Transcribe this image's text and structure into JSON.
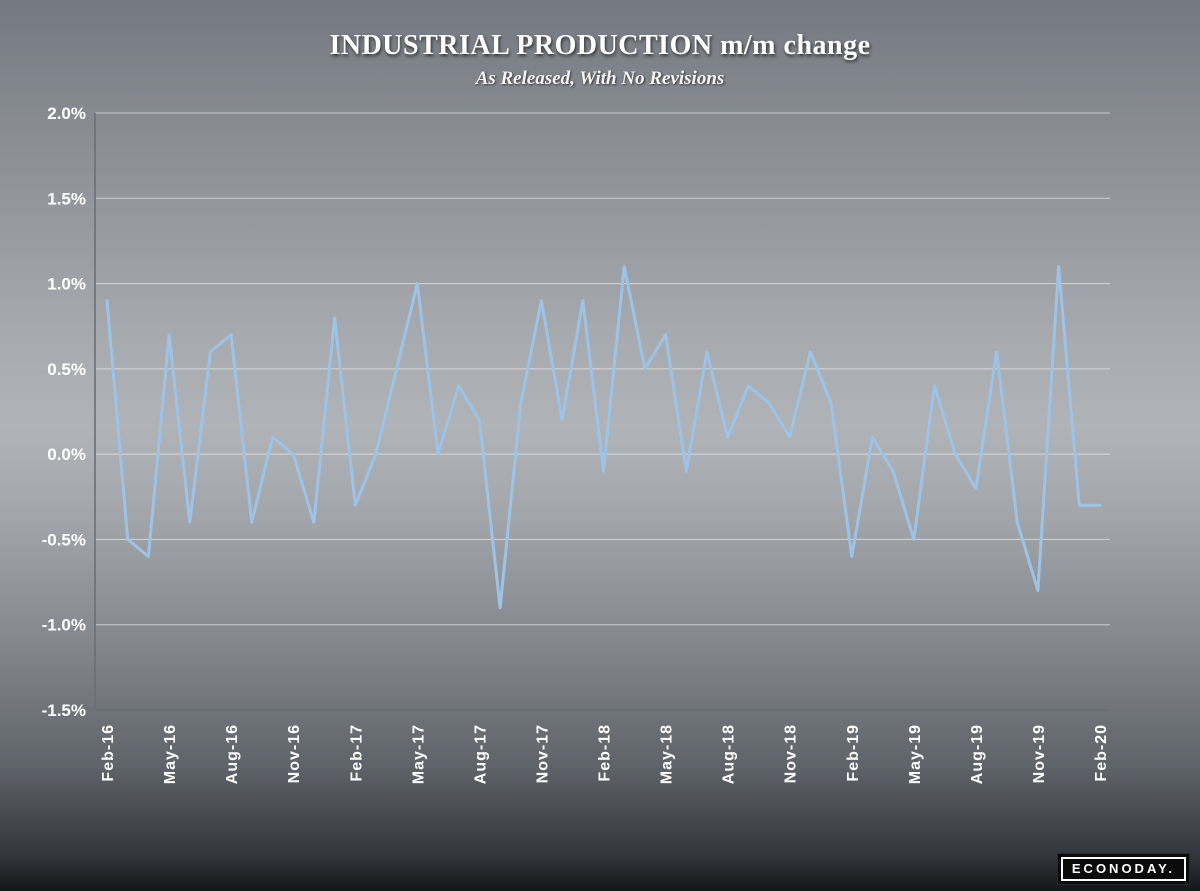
{
  "chart_data": {
    "type": "line",
    "title": "INDUSTRIAL PRODUCTION m/m change",
    "subtitle": "As Released, With No Revisions",
    "frequency": "monthly",
    "x_start": "Feb-16",
    "x_end": "Feb-20",
    "categories": [
      "Feb-16",
      "May-16",
      "Aug-16",
      "Nov-16",
      "Feb-17",
      "May-17",
      "Aug-17",
      "Nov-17",
      "Feb-18",
      "May-18",
      "Aug-18",
      "Nov-18",
      "Feb-19",
      "May-19",
      "Aug-19",
      "Nov-19",
      "Feb-20"
    ],
    "xtick_every": 3,
    "values": [
      0.9,
      -0.5,
      -0.6,
      0.7,
      -0.4,
      0.6,
      0.7,
      -0.4,
      0.1,
      0.0,
      -0.4,
      0.8,
      -0.3,
      0.0,
      0.5,
      1.0,
      0.0,
      0.4,
      0.2,
      -0.9,
      0.3,
      0.9,
      0.2,
      0.9,
      -0.1,
      1.1,
      0.5,
      0.7,
      -0.1,
      0.6,
      0.1,
      0.4,
      0.3,
      0.1,
      0.6,
      0.3,
      -0.6,
      0.1,
      -0.1,
      -0.5,
      0.4,
      0.0,
      -0.2,
      0.6,
      -0.4,
      -0.8,
      1.1,
      -0.3,
      -0.3
    ],
    "ylim": [
      -1.5,
      2.0
    ],
    "yticks": [
      {
        "v": 2.0,
        "label": "2.0%"
      },
      {
        "v": 1.5,
        "label": "1.5%"
      },
      {
        "v": 1.0,
        "label": "1.0%"
      },
      {
        "v": 0.5,
        "label": "0.5%"
      },
      {
        "v": 0.0,
        "label": "0.0%"
      },
      {
        "v": -0.5,
        "label": "-0.5%"
      },
      {
        "v": -1.0,
        "label": "-1.0%"
      },
      {
        "v": -1.5,
        "label": "-1.5%"
      }
    ],
    "grid": true,
    "legend": "none",
    "colors": {
      "line": "#9dc3e6",
      "grid": "rgba(255,255,255,0.55)",
      "axis": "#6a6f76"
    }
  },
  "branding": {
    "logo_text": "ECONODAY."
  }
}
